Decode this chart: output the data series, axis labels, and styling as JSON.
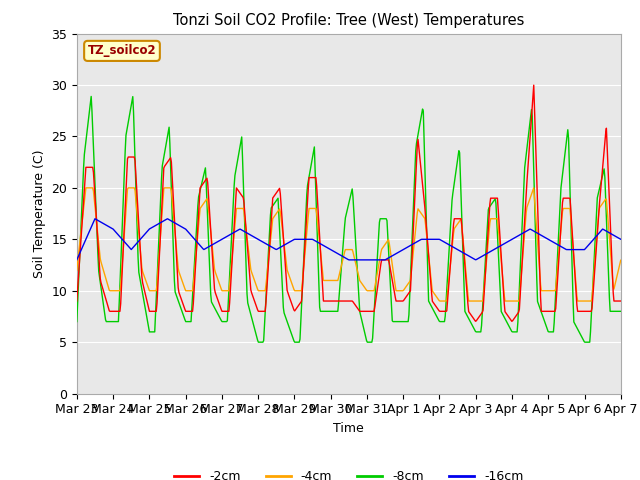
{
  "title": "Tonzi Soil CO2 Profile: Tree (West) Temperatures",
  "xlabel": "Time",
  "ylabel": "Soil Temperature (C)",
  "legend_label": "TZ_soilco2",
  "series_labels": [
    "-2cm",
    "-4cm",
    "-8cm",
    "-16cm"
  ],
  "series_colors": [
    "#ff0000",
    "#ffa500",
    "#00cc00",
    "#0000ee"
  ],
  "ylim": [
    0,
    35
  ],
  "background_color": "#e8e8e8",
  "tick_labels": [
    "Mar 23",
    "Mar 24",
    "Mar 25",
    "Mar 26",
    "Mar 27",
    "Mar 28",
    "Mar 29",
    "Mar 30",
    "Mar 31",
    "Apr 1",
    "Apr 2",
    "Apr 3",
    "Apr 4",
    "Apr 5",
    "Apr 6",
    "Apr 7"
  ],
  "yticks": [
    0,
    5,
    10,
    15,
    20,
    25,
    30,
    35
  ],
  "grid_color": "#ffffff",
  "spine_color": "#aaaaaa"
}
